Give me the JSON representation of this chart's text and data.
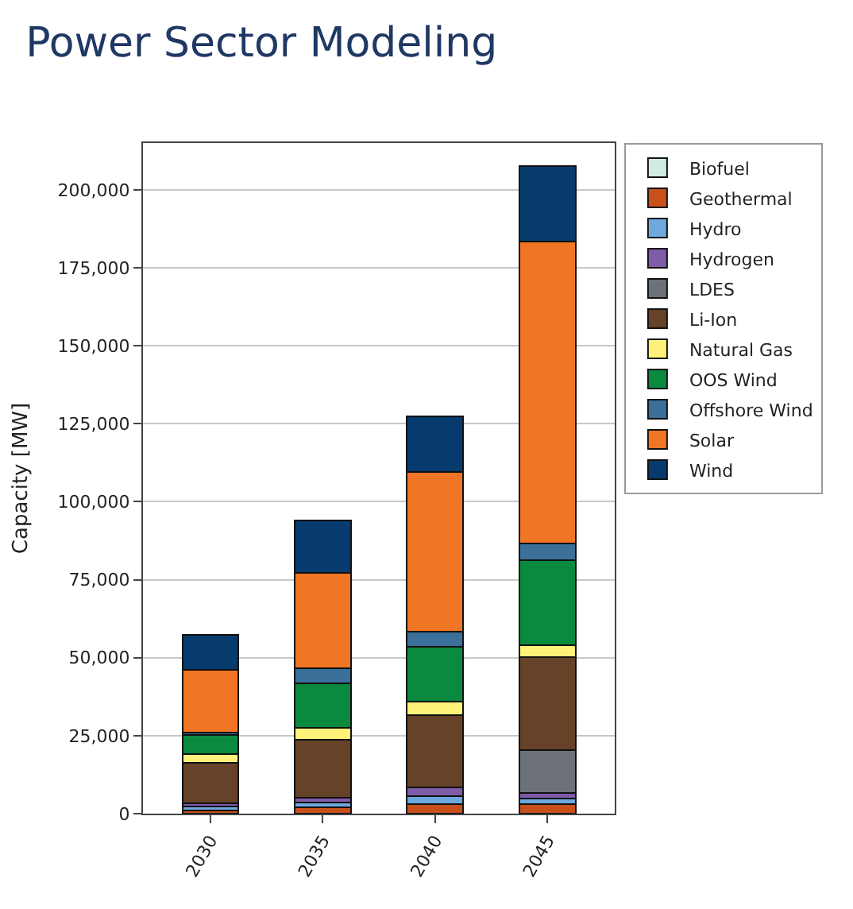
{
  "chart_data": {
    "type": "bar",
    "title": "Power Sector Modeling",
    "ylabel": "Capacity [MW]",
    "stacked": true,
    "categories": [
      "2030",
      "2035",
      "2040",
      "2045"
    ],
    "ylim": [
      0,
      215000
    ],
    "yticks": [
      {
        "value": 0,
        "label": "0"
      },
      {
        "value": 25000,
        "label": "25,000"
      },
      {
        "value": 50000,
        "label": "50,000"
      },
      {
        "value": 75000,
        "label": "75,000"
      },
      {
        "value": 100000,
        "label": "100,000"
      },
      {
        "value": 125000,
        "label": "125,000"
      },
      {
        "value": 150000,
        "label": "150,000"
      },
      {
        "value": 175000,
        "label": "175,000"
      },
      {
        "value": 200000,
        "label": "200,000"
      }
    ],
    "grid": "y",
    "legend": "right",
    "series": [
      {
        "name": "Biofuel",
        "color": "#d0ebe0",
        "values": [
          0,
          0,
          0,
          0
        ]
      },
      {
        "name": "Geothermal",
        "color": "#c8501a",
        "values": [
          1000,
          2000,
          3000,
          3000
        ]
      },
      {
        "name": "Hydro",
        "color": "#6fa8dc",
        "values": [
          1200,
          1500,
          2500,
          1800
        ]
      },
      {
        "name": "Hydrogen",
        "color": "#7e5ca8",
        "values": [
          1200,
          1600,
          3000,
          1800
        ]
      },
      {
        "name": "LDES",
        "color": "#6d7178",
        "values": [
          0,
          0,
          0,
          13800
        ]
      },
      {
        "name": "Li-Ion",
        "color": "#664228",
        "values": [
          12800,
          18500,
          23000,
          29900
        ]
      },
      {
        "name": "Natural Gas",
        "color": "#fff27a",
        "values": [
          3000,
          3900,
          4300,
          3800
        ]
      },
      {
        "name": "OOS Wind",
        "color": "#0a8a3f",
        "values": [
          6000,
          14300,
          17700,
          27100
        ]
      },
      {
        "name": "Offshore Wind",
        "color": "#3a7099",
        "values": [
          700,
          4700,
          4800,
          5300
        ]
      },
      {
        "name": "Solar",
        "color": "#f07626",
        "values": [
          20100,
          30800,
          51200,
          96900
        ]
      },
      {
        "name": "Wind",
        "color": "#073b6e",
        "values": [
          11200,
          16700,
          17900,
          24100
        ]
      }
    ]
  }
}
